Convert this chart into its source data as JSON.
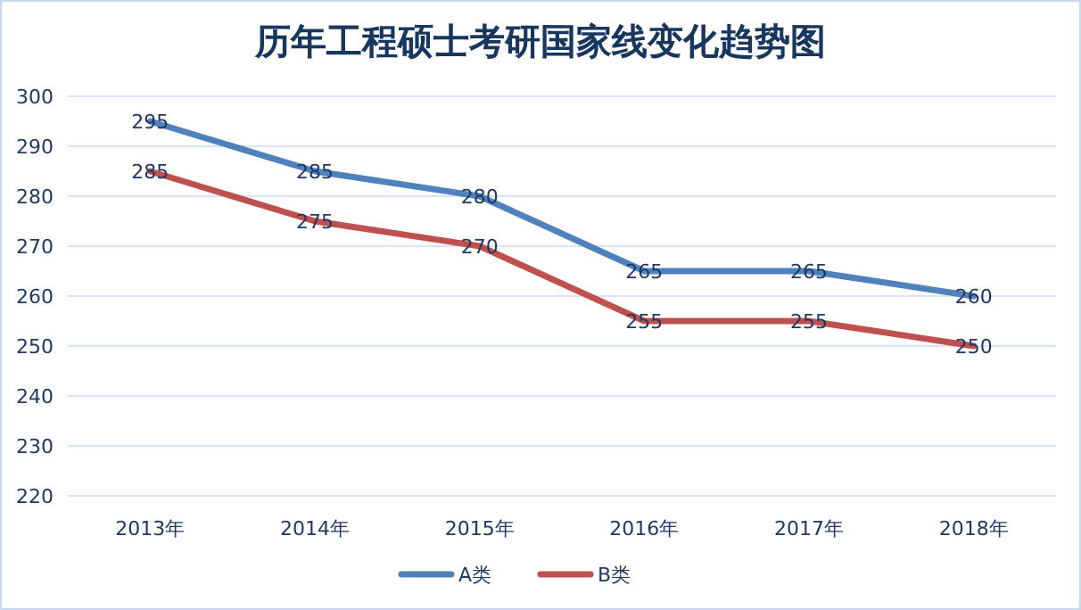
{
  "chart_data": {
    "type": "line",
    "title": "历年工程硕士考研国家线变化趋势图",
    "categories": [
      "2013年",
      "2014年",
      "2015年",
      "2016年",
      "2017年",
      "2018年"
    ],
    "series": [
      {
        "name": "A类",
        "color": "#4f81bd",
        "values": [
          295,
          285,
          280,
          265,
          265,
          260
        ]
      },
      {
        "name": "B类",
        "color": "#c0504d",
        "values": [
          285,
          275,
          270,
          255,
          255,
          250
        ]
      }
    ],
    "ylim": [
      220,
      300
    ],
    "yticks": [
      220,
      230,
      240,
      250,
      260,
      270,
      280,
      290,
      300
    ],
    "grid": "y",
    "legend": "bottom",
    "data_labels": true,
    "marker": "none",
    "line_style": "solid"
  }
}
